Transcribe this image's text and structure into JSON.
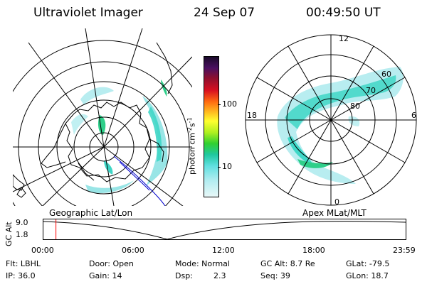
{
  "header": {
    "instrument": "Ultraviolet Imager",
    "date": "24 Sep 07",
    "time": "00:49:50 UT"
  },
  "panels": {
    "left_label": "Geographic Lat/Lon",
    "right_label": "Apex MLat/MLT"
  },
  "colorbar": {
    "label_main": "photon cm",
    "label_exp1": "-2",
    "label_mid": "s",
    "label_exp2": "-1",
    "ticks": [
      "100",
      "10"
    ]
  },
  "polar_right": {
    "mlt_labels": [
      "12",
      "18",
      "6",
      "0"
    ],
    "mlat_labels": [
      "60",
      "70",
      "80"
    ]
  },
  "timeline": {
    "axis_label": "GC Alt",
    "y_ticks": [
      "9.0",
      "1.8"
    ],
    "x_ticks": [
      "00:00",
      "06:00",
      "12:00",
      "18:00",
      "23:59"
    ],
    "marker_fraction": 0.0346
  },
  "status": {
    "flt": "Flt: LBHL",
    "ip": "IP: 36.0",
    "door": "Door: Open",
    "gain": "Gain: 14",
    "mode": "Mode: Normal",
    "dsp": "Dsp:",
    "dsp_val": "2.3",
    "gc_alt": "GC Alt: 8.7 Re",
    "seq": "Seq: 39",
    "glat": "GLat: -79.5",
    "glon": "GLon: 18.7"
  },
  "colors": {
    "aurora_low": "#7fe0e0",
    "aurora_mid": "#40d8c8",
    "aurora_high": "#2ecf8a",
    "marker": "#ff0000",
    "track": "#0000cc"
  }
}
